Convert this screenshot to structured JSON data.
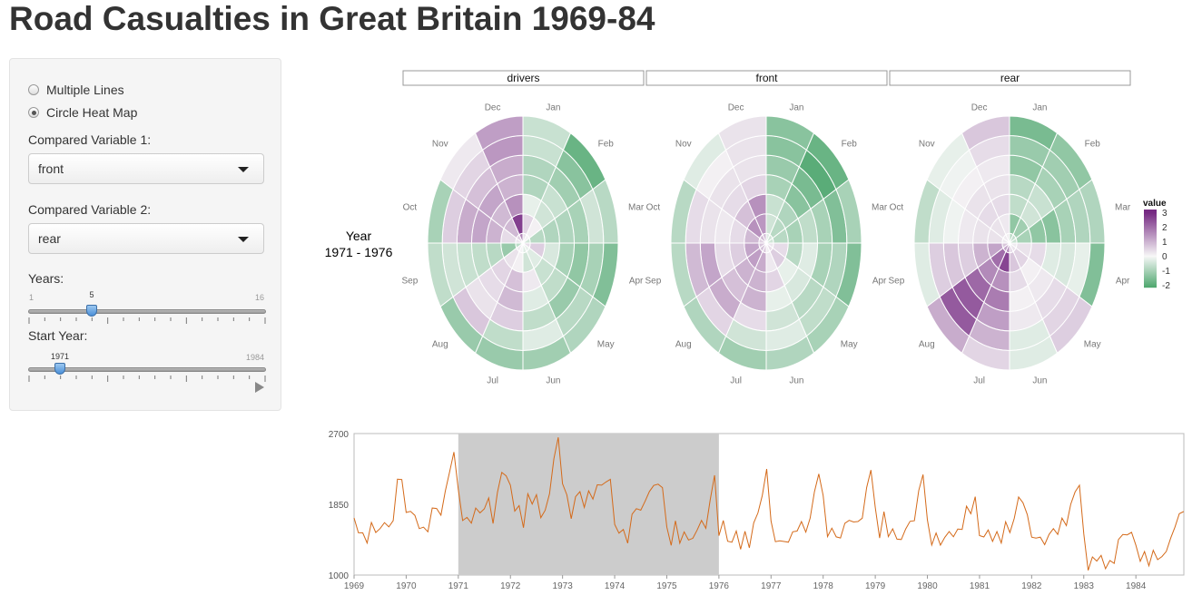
{
  "title": "Road Casualties in Great Britain 1969-84",
  "sidebar": {
    "radio_options": [
      {
        "label": "Multiple Lines",
        "checked": false
      },
      {
        "label": "Circle Heat Map",
        "checked": true
      }
    ],
    "var1": {
      "label": "Compared Variable 1:",
      "value": "front"
    },
    "var2": {
      "label": "Compared Variable 2:",
      "value": "rear"
    },
    "years_slider": {
      "label": "Years:",
      "min": "1",
      "max": "16",
      "value": "5"
    },
    "start_slider": {
      "label": "Start Year:",
      "min": "1971",
      "max": "1984",
      "value": "1971"
    }
  },
  "heatmap": {
    "row_label": "Year",
    "row_range": "1971 - 1976",
    "panels": [
      "drivers",
      "front",
      "rear"
    ],
    "months": [
      "Jan",
      "Feb",
      "Mar",
      "Apr",
      "May",
      "Jun",
      "Jul",
      "Aug",
      "Sep",
      "Oct",
      "Nov",
      "Dec"
    ],
    "legend_title": "value",
    "legend_ticks": [
      "3",
      "2",
      "1",
      "0",
      "-1",
      "-2"
    ],
    "color_scale": {
      "low": "#4aa56b",
      "mid": "#f7f7f7",
      "high": "#762a83"
    },
    "values": {
      "drivers": [
        [
          0.5,
          0.1,
          -0.8,
          0.6,
          -0.3,
          -0.5,
          0.1,
          0.3,
          -1.2,
          0.4,
          0.9,
          2.7
        ],
        [
          -0.2,
          -0.5,
          -0.9,
          -0.4,
          -0.6,
          0.2,
          0.8,
          0.5,
          -0.8,
          1.0,
          0.9,
          1.5
        ],
        [
          -0.9,
          -0.6,
          -0.9,
          -1.0,
          -0.7,
          -0.3,
          0.9,
          0.4,
          -0.7,
          1.2,
          1.2,
          1.0
        ],
        [
          -0.9,
          -1.1,
          -1.0,
          -1.3,
          -1.2,
          -0.7,
          0.6,
          0.3,
          -0.6,
          1.1,
          0.8,
          1.1
        ],
        [
          -0.6,
          -1.4,
          -0.5,
          -1.0,
          -0.8,
          -0.3,
          -0.7,
          0.7,
          -0.5,
          0.6,
          0.5,
          1.4
        ],
        [
          -0.6,
          -1.8,
          -0.8,
          -1.5,
          -0.9,
          -1.1,
          -1.2,
          -1.2,
          -0.7,
          -1.0,
          0.2,
          1.3
        ]
      ],
      "front": [
        [
          -0.5,
          -0.8,
          -0.8,
          0.4,
          0.6,
          0.2,
          1.1,
          1.3,
          1.2,
          0.9,
          1.5,
          1.4
        ],
        [
          -0.6,
          -0.9,
          -1.0,
          -0.8,
          -0.2,
          0.5,
          1.0,
          1.0,
          0.6,
          0.4,
          0.8,
          1.5
        ],
        [
          -1.0,
          -1.4,
          -0.7,
          -0.3,
          -0.4,
          -0.2,
          1.0,
          0.8,
          0.4,
          0.2,
          0.4,
          0.5
        ],
        [
          -1.2,
          -1.6,
          -1.0,
          -1.0,
          -0.8,
          -0.5,
          0.4,
          1.1,
          1.2,
          0.3,
          0.3,
          0.3
        ],
        [
          -1.4,
          -2.0,
          -1.5,
          -0.9,
          -0.7,
          -0.3,
          -0.5,
          0.5,
          0.9,
          0.4,
          0.1,
          0.3
        ],
        [
          -1.4,
          -1.8,
          -1.0,
          -1.5,
          -1.0,
          -0.9,
          -1.1,
          -0.9,
          -0.8,
          -0.8,
          -0.3,
          0.3
        ]
      ],
      "rear": [
        [
          -1.3,
          -1.1,
          -1.0,
          0.3,
          0.5,
          0.7,
          2.6,
          2.0,
          1.2,
          0.3,
          0.3,
          0.2
        ],
        [
          -0.7,
          -0.5,
          -1.3,
          0.4,
          0.1,
          0.4,
          1.5,
          1.6,
          1.0,
          0.3,
          0.4,
          0.4
        ],
        [
          -0.8,
          -0.6,
          -1.4,
          -0.3,
          0.2,
          0.1,
          1.8,
          2.1,
          0.6,
          0.2,
          0.3,
          0.3
        ],
        [
          -1.3,
          -1.0,
          -1.0,
          -0.4,
          0.4,
          0.2,
          1.3,
          2.3,
          0.7,
          -0.1,
          0.1,
          0.2
        ],
        [
          -1.2,
          -1.1,
          -0.9,
          -0.2,
          0.5,
          -0.3,
          1.0,
          2.3,
          0.6,
          -0.3,
          -0.1,
          0.4
        ],
        [
          -1.6,
          -1.3,
          -0.9,
          -1.5,
          0.6,
          -0.3,
          0.5,
          1.1,
          -0.3,
          -0.7,
          -0.2,
          0.7
        ]
      ]
    }
  },
  "chart_data": {
    "type": "line",
    "title": "",
    "xlabel": "",
    "ylabel": "",
    "x_start": 1969,
    "x_end": 1984.92,
    "ylim": [
      1000,
      2700
    ],
    "y_ticks": [
      "2700",
      "1850",
      "1000"
    ],
    "x_ticks": [
      "1969",
      "1970",
      "1971",
      "1972",
      "1973",
      "1974",
      "1975",
      "1976",
      "1977",
      "1978",
      "1979",
      "1980",
      "1981",
      "1982",
      "1983",
      "1984"
    ],
    "highlight_range": [
      1971,
      1976
    ],
    "line_color": "#d46a1a",
    "highlight_color": "#cccccc",
    "series": [
      {
        "values": [
          1687,
          1508,
          1507,
          1385,
          1632,
          1511,
          1559,
          1630,
          1579,
          1653,
          2152,
          2148,
          1752,
          1765,
          1717,
          1558,
          1575,
          1520,
          1805,
          1800,
          1719,
          2008,
          2242,
          2478,
          2030,
          1655,
          1693,
          1623,
          1805,
          1746,
          1795,
          1926,
          1619,
          1992,
          2233,
          2192,
          2080,
          1768,
          1835,
          1569,
          1976,
          1853,
          1965,
          1689,
          1778,
          1976,
          2397,
          2654,
          2097,
          1963,
          1677,
          1941,
          2003,
          1813,
          2012,
          1912,
          2084,
          2080,
          2118,
          2150,
          1608,
          1503,
          1548,
          1382,
          1731,
          1798,
          1779,
          1887,
          2004,
          2077,
          2092,
          2051,
          1577,
          1356,
          1652,
          1382,
          1519,
          1421,
          1442,
          1543,
          1656,
          1561,
          1905,
          2199,
          1473,
          1655,
          1407,
          1395,
          1530,
          1309,
          1526,
          1327,
          1627,
          1748,
          1958,
          2274,
          1648,
          1401,
          1411,
          1403,
          1394,
          1520,
          1528,
          1643,
          1515,
          1685,
          2000,
          2215,
          1956,
          1462,
          1563,
          1459,
          1446,
          1622,
          1657,
          1638,
          1643,
          1683,
          2050,
          2262,
          1813,
          1445,
          1762,
          1461,
          1556,
          1431,
          1427,
          1554,
          1645,
          1653,
          2016,
          2207,
          1665,
          1361,
          1506,
          1360,
          1453,
          1522,
          1460,
          1552,
          1548,
          1827,
          1737,
          1941,
          1474,
          1458,
          1542,
          1404,
          1522,
          1385,
          1641,
          1510,
          1681,
          1938,
          1868,
          1726,
          1456,
          1445,
          1456,
          1365,
          1487,
          1558,
          1488,
          1684,
          1594,
          1850,
          1998,
          2079,
          1494,
          1057,
          1218,
          1168,
          1236,
          1076,
          1174,
          1139,
          1427,
          1487,
          1483,
          1513,
          1357,
          1165,
          1282,
          1110,
          1297,
          1185,
          1222,
          1284,
          1444,
          1575,
          1737,
          1763
        ]
      }
    ]
  }
}
